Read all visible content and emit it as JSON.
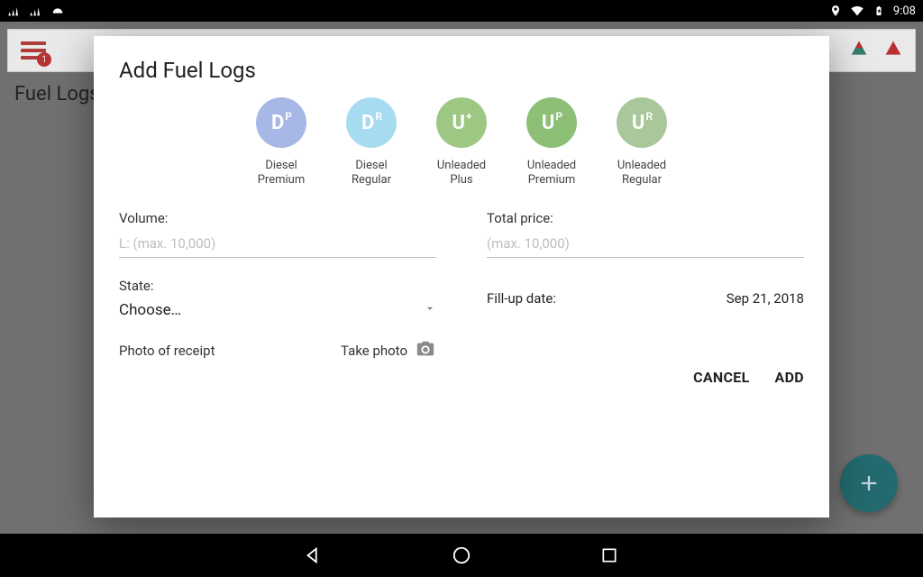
{
  "status_bar": {
    "clock": "9:08",
    "icons_left": [
      "signal-icon",
      "signal-icon",
      "helmet-icon"
    ],
    "icons_right": [
      "location-icon",
      "wifi-icon",
      "battery-icon"
    ]
  },
  "topbar": {
    "badge_count": "1"
  },
  "background": {
    "page_title": "Fuel Logs"
  },
  "dialog": {
    "title": "Add Fuel Logs",
    "fuel_types": [
      {
        "letter": "D",
        "sup": "P",
        "label_line1": "Diesel",
        "label_line2": "Premium",
        "color": "#a7b7e6"
      },
      {
        "letter": "D",
        "sup": "R",
        "label_line1": "Diesel",
        "label_line2": "Regular",
        "color": "#a7dcf0"
      },
      {
        "letter": "U",
        "sup": "+",
        "label_line1": "Unleaded",
        "label_line2": "Plus",
        "color": "#9ec784"
      },
      {
        "letter": "U",
        "sup": "P",
        "label_line1": "Unleaded",
        "label_line2": "Premium",
        "color": "#8dbf77"
      },
      {
        "letter": "U",
        "sup": "R",
        "label_line1": "Unleaded",
        "label_line2": "Regular",
        "color": "#a9c79a"
      }
    ],
    "volume_label": "Volume:",
    "volume_placeholder": "L: (max. 10,000)",
    "total_price_label": "Total price:",
    "total_price_placeholder": "(max. 10,000)",
    "state_label": "State:",
    "state_value": "Choose…",
    "fillup_label": "Fill-up date:",
    "fillup_value": "Sep 21, 2018",
    "photo_label": "Photo of receipt",
    "take_photo_label": "Take photo",
    "cancel_label": "CANCEL",
    "add_label": "ADD"
  },
  "colors": {
    "underline": "#bdbdbd",
    "placeholder": "#bdbdbd",
    "fab_bg": "#1a6a6e"
  }
}
